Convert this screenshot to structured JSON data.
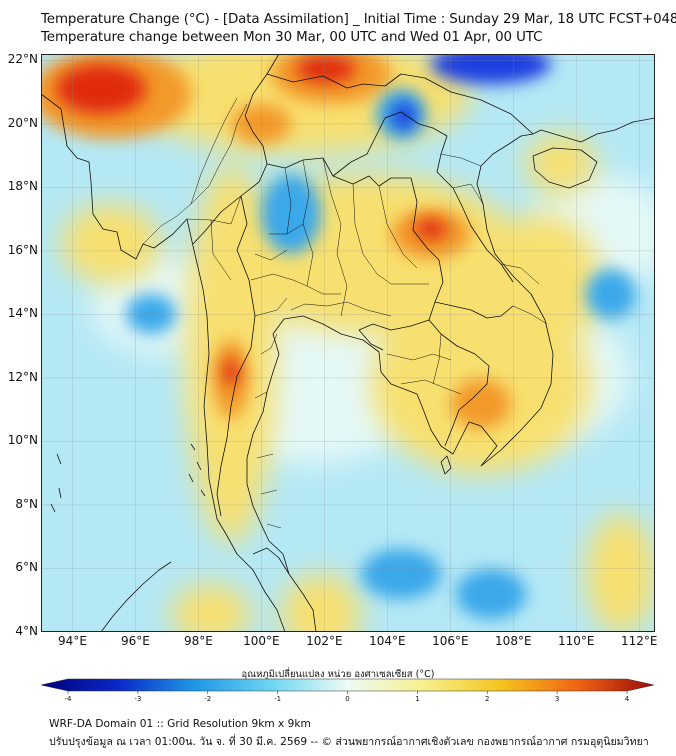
{
  "header": {
    "title_line1": "Temperature Change (°C) - [Data Assimilation] _ Initial Time : Sunday 29 Mar, 18 UTC FCST+048",
    "title_line2": "Temperature change between Mon 30 Mar, 00 UTC and Wed 01 Apr, 00 UTC"
  },
  "map": {
    "lon_range": [
      93,
      112.5
    ],
    "lat_range": [
      4,
      22.2
    ],
    "lat_labels": [
      {
        "value": 22,
        "text": "22°N"
      },
      {
        "value": 20,
        "text": "20°N"
      },
      {
        "value": 18,
        "text": "18°N"
      },
      {
        "value": 16,
        "text": "16°N"
      },
      {
        "value": 14,
        "text": "14°N"
      },
      {
        "value": 12,
        "text": "12°N"
      },
      {
        "value": 10,
        "text": "10°N"
      },
      {
        "value": 8,
        "text": "8°N"
      },
      {
        "value": 6,
        "text": "6°N"
      },
      {
        "value": 4,
        "text": "4°N"
      }
    ],
    "lon_labels": [
      {
        "value": 94,
        "text": "94°E"
      },
      {
        "value": 96,
        "text": "96°E"
      },
      {
        "value": 98,
        "text": "98°E"
      },
      {
        "value": 100,
        "text": "100°E"
      },
      {
        "value": 102,
        "text": "102°E"
      },
      {
        "value": 104,
        "text": "104°E"
      },
      {
        "value": 106,
        "text": "106°E"
      },
      {
        "value": 108,
        "text": "108°E"
      },
      {
        "value": 110,
        "text": "110°E"
      },
      {
        "value": 112,
        "text": "112°E"
      }
    ],
    "grid_lines": true,
    "background_color": "#b4e8f5"
  },
  "colorbar": {
    "title": "อุณหภูมิเปลี่ยนแปลง หน่วย องศาเซลเซียส (°C)",
    "min": -4,
    "max": 4,
    "ticks": [
      {
        "value": -4,
        "text": "-4"
      },
      {
        "value": -3,
        "text": "-3"
      },
      {
        "value": -2,
        "text": "-2"
      },
      {
        "value": -1,
        "text": "-1"
      },
      {
        "value": 0,
        "text": "0"
      },
      {
        "value": 1,
        "text": "1"
      },
      {
        "value": 2,
        "text": "2"
      },
      {
        "value": 3,
        "text": "3"
      },
      {
        "value": 4,
        "text": "4"
      }
    ],
    "colors": [
      "#00007a",
      "#0a28c8",
      "#1e96e6",
      "#6cd6f2",
      "#eefaf5",
      "#f6f08c",
      "#f5c51e",
      "#f06414",
      "#9c0a0a"
    ]
  },
  "footer": {
    "line1": "WRF-DA Domain 01 :: Grid Resolution 9km x 9km",
    "line2": "ปรับปรุงข้อมูล ณ เวลา 01:00น. วัน จ. ที่ 30 มี.ค. 2569 -- © ส่วนพยากรณ์อากาศเชิงตัวเลข กองพยากรณ์อากาศ กรมอุตุนิยมวิทยา"
  }
}
